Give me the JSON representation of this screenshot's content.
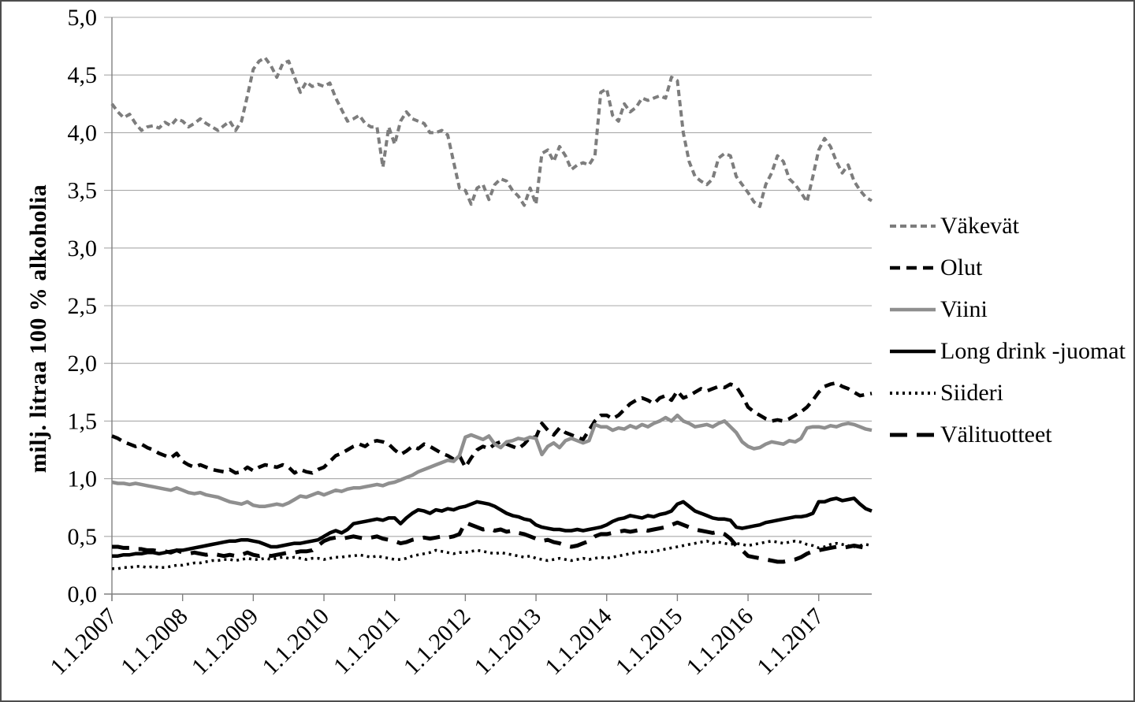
{
  "chart_data": {
    "type": "line",
    "title": "",
    "ylabel": "milj. litraa 100 % alkoholia",
    "x_unit": "month",
    "x_start_label": "1.1.2007",
    "months_per_tick": 12,
    "x_tick_labels": [
      "1.1.2007",
      "1.1.2008",
      "1.1.2009",
      "1.1.2010",
      "1.1.2011",
      "1.1.2012",
      "1.1.2013",
      "1.1.2014",
      "1.1.2015",
      "1.1.2016",
      "1.1.2017"
    ],
    "y_tick_labels": [
      "0,0",
      "0,5",
      "1,0",
      "1,5",
      "2,0",
      "2,5",
      "3,0",
      "3,5",
      "4,0",
      "4,5",
      "5,0"
    ],
    "y_tick_values": [
      0,
      0.5,
      1.0,
      1.5,
      2.0,
      2.5,
      3.0,
      3.5,
      4.0,
      4.5,
      5.0
    ],
    "ylim": [
      0,
      5
    ],
    "grid": "horizontal",
    "legend_position": "right",
    "axis_color": "#808080",
    "grid_color": "#a8a8a8",
    "series": [
      {
        "id": "vakevat",
        "name": "Väkevät",
        "color": "#7d7d7d",
        "line_style": "short-dash",
        "line_width": 4,
        "values": [
          4.25,
          4.18,
          4.13,
          4.16,
          4.08,
          4.02,
          4.05,
          4.06,
          4.04,
          4.09,
          4.06,
          4.12,
          4.1,
          4.05,
          4.08,
          4.12,
          4.08,
          4.05,
          4.02,
          4.06,
          4.1,
          4.02,
          4.1,
          4.32,
          4.55,
          4.62,
          4.65,
          4.58,
          4.48,
          4.6,
          4.62,
          4.48,
          4.35,
          4.44,
          4.4,
          4.42,
          4.4,
          4.43,
          4.3,
          4.2,
          4.1,
          4.12,
          4.15,
          4.08,
          4.05,
          4.05,
          3.7,
          4.05,
          3.9,
          4.1,
          4.18,
          4.12,
          4.1,
          4.08,
          4.0,
          4.0,
          4.02,
          3.98,
          3.75,
          3.52,
          3.5,
          3.38,
          3.52,
          3.55,
          3.42,
          3.55,
          3.6,
          3.58,
          3.5,
          3.45,
          3.37,
          3.52,
          3.38,
          3.82,
          3.85,
          3.75,
          3.88,
          3.8,
          3.68,
          3.72,
          3.74,
          3.72,
          3.8,
          4.35,
          4.38,
          4.15,
          4.1,
          4.25,
          4.18,
          4.22,
          4.3,
          4.28,
          4.3,
          4.32,
          4.3,
          4.48,
          4.45,
          4.0,
          3.75,
          3.62,
          3.58,
          3.55,
          3.6,
          3.78,
          3.82,
          3.8,
          3.62,
          3.55,
          3.48,
          3.4,
          3.36,
          3.55,
          3.65,
          3.8,
          3.75,
          3.6,
          3.55,
          3.48,
          3.4,
          3.62,
          3.85,
          3.95,
          3.88,
          3.75,
          3.65,
          3.72,
          3.58,
          3.5,
          3.44,
          3.41
        ]
      },
      {
        "id": "olut",
        "name": "Olut",
        "color": "#000000",
        "line_style": "dash",
        "line_width": 4.5,
        "values": [
          1.37,
          1.35,
          1.32,
          1.3,
          1.28,
          1.3,
          1.27,
          1.25,
          1.22,
          1.2,
          1.18,
          1.22,
          1.15,
          1.12,
          1.1,
          1.12,
          1.1,
          1.08,
          1.07,
          1.06,
          1.08,
          1.05,
          1.06,
          1.1,
          1.07,
          1.1,
          1.12,
          1.11,
          1.1,
          1.12,
          1.1,
          1.05,
          1.08,
          1.06,
          1.05,
          1.08,
          1.1,
          1.15,
          1.2,
          1.22,
          1.25,
          1.28,
          1.3,
          1.28,
          1.32,
          1.33,
          1.32,
          1.3,
          1.25,
          1.21,
          1.24,
          1.28,
          1.26,
          1.3,
          1.28,
          1.25,
          1.22,
          1.2,
          1.17,
          1.2,
          1.1,
          1.18,
          1.25,
          1.28,
          1.26,
          1.3,
          1.32,
          1.3,
          1.28,
          1.26,
          1.3,
          1.36,
          1.36,
          1.48,
          1.42,
          1.38,
          1.44,
          1.4,
          1.38,
          1.36,
          1.34,
          1.42,
          1.5,
          1.55,
          1.55,
          1.52,
          1.55,
          1.6,
          1.65,
          1.68,
          1.7,
          1.68,
          1.65,
          1.7,
          1.72,
          1.68,
          1.76,
          1.7,
          1.72,
          1.75,
          1.78,
          1.76,
          1.78,
          1.8,
          1.79,
          1.82,
          1.8,
          1.72,
          1.62,
          1.58,
          1.55,
          1.52,
          1.5,
          1.51,
          1.5,
          1.52,
          1.55,
          1.58,
          1.62,
          1.68,
          1.75,
          1.8,
          1.82,
          1.83,
          1.8,
          1.78,
          1.75,
          1.72,
          1.73,
          1.74
        ]
      },
      {
        "id": "viini",
        "name": "Viini",
        "color": "#8f8f8f",
        "line_style": "solid",
        "line_width": 4.5,
        "values": [
          0.97,
          0.96,
          0.96,
          0.95,
          0.96,
          0.95,
          0.94,
          0.93,
          0.92,
          0.91,
          0.9,
          0.92,
          0.9,
          0.88,
          0.87,
          0.88,
          0.86,
          0.85,
          0.84,
          0.82,
          0.8,
          0.79,
          0.78,
          0.8,
          0.77,
          0.76,
          0.76,
          0.77,
          0.78,
          0.77,
          0.79,
          0.82,
          0.85,
          0.84,
          0.86,
          0.88,
          0.86,
          0.88,
          0.9,
          0.89,
          0.91,
          0.92,
          0.92,
          0.93,
          0.94,
          0.95,
          0.94,
          0.96,
          0.97,
          0.99,
          1.01,
          1.03,
          1.06,
          1.08,
          1.1,
          1.12,
          1.14,
          1.16,
          1.15,
          1.2,
          1.36,
          1.38,
          1.36,
          1.34,
          1.37,
          1.3,
          1.27,
          1.32,
          1.33,
          1.35,
          1.34,
          1.36,
          1.35,
          1.21,
          1.28,
          1.31,
          1.27,
          1.33,
          1.35,
          1.33,
          1.31,
          1.33,
          1.47,
          1.45,
          1.45,
          1.42,
          1.44,
          1.43,
          1.46,
          1.44,
          1.47,
          1.45,
          1.48,
          1.5,
          1.53,
          1.5,
          1.55,
          1.5,
          1.48,
          1.45,
          1.46,
          1.47,
          1.45,
          1.48,
          1.5,
          1.45,
          1.4,
          1.32,
          1.28,
          1.26,
          1.27,
          1.3,
          1.32,
          1.31,
          1.3,
          1.33,
          1.32,
          1.35,
          1.44,
          1.45,
          1.45,
          1.44,
          1.46,
          1.45,
          1.47,
          1.48,
          1.47,
          1.45,
          1.43,
          1.42
        ]
      },
      {
        "id": "long-drink",
        "name": "Long drink -juomat",
        "color": "#000000",
        "line_style": "solid",
        "line_width": 4.5,
        "values": [
          0.33,
          0.33,
          0.34,
          0.34,
          0.35,
          0.35,
          0.36,
          0.36,
          0.35,
          0.36,
          0.37,
          0.38,
          0.38,
          0.39,
          0.4,
          0.41,
          0.42,
          0.43,
          0.44,
          0.45,
          0.46,
          0.46,
          0.47,
          0.47,
          0.46,
          0.45,
          0.43,
          0.41,
          0.41,
          0.42,
          0.43,
          0.44,
          0.44,
          0.45,
          0.46,
          0.47,
          0.5,
          0.53,
          0.55,
          0.53,
          0.56,
          0.61,
          0.62,
          0.63,
          0.64,
          0.65,
          0.64,
          0.66,
          0.66,
          0.61,
          0.66,
          0.7,
          0.73,
          0.72,
          0.7,
          0.73,
          0.72,
          0.74,
          0.73,
          0.75,
          0.76,
          0.78,
          0.8,
          0.79,
          0.78,
          0.76,
          0.73,
          0.7,
          0.68,
          0.67,
          0.65,
          0.64,
          0.6,
          0.58,
          0.57,
          0.56,
          0.56,
          0.55,
          0.55,
          0.56,
          0.55,
          0.56,
          0.57,
          0.58,
          0.6,
          0.63,
          0.65,
          0.66,
          0.68,
          0.67,
          0.66,
          0.68,
          0.67,
          0.69,
          0.7,
          0.72,
          0.78,
          0.8,
          0.76,
          0.72,
          0.7,
          0.68,
          0.66,
          0.65,
          0.65,
          0.64,
          0.58,
          0.57,
          0.58,
          0.59,
          0.6,
          0.62,
          0.63,
          0.64,
          0.65,
          0.66,
          0.67,
          0.67,
          0.68,
          0.7,
          0.8,
          0.8,
          0.82,
          0.83,
          0.81,
          0.82,
          0.83,
          0.78,
          0.74,
          0.72
        ]
      },
      {
        "id": "siideri",
        "name": "Siideri",
        "color": "#000000",
        "line_style": "dot",
        "line_width": 3.5,
        "values": [
          0.22,
          0.22,
          0.23,
          0.23,
          0.24,
          0.24,
          0.23,
          0.24,
          0.23,
          0.23,
          0.24,
          0.25,
          0.25,
          0.26,
          0.27,
          0.27,
          0.28,
          0.29,
          0.29,
          0.3,
          0.3,
          0.29,
          0.3,
          0.31,
          0.3,
          0.3,
          0.31,
          0.3,
          0.31,
          0.32,
          0.31,
          0.32,
          0.31,
          0.3,
          0.31,
          0.31,
          0.3,
          0.31,
          0.32,
          0.32,
          0.33,
          0.33,
          0.34,
          0.33,
          0.32,
          0.33,
          0.32,
          0.31,
          0.3,
          0.3,
          0.31,
          0.33,
          0.34,
          0.35,
          0.36,
          0.38,
          0.37,
          0.36,
          0.35,
          0.36,
          0.36,
          0.37,
          0.38,
          0.37,
          0.36,
          0.35,
          0.36,
          0.35,
          0.34,
          0.33,
          0.32,
          0.33,
          0.31,
          0.3,
          0.29,
          0.3,
          0.31,
          0.3,
          0.29,
          0.3,
          0.31,
          0.3,
          0.31,
          0.32,
          0.31,
          0.32,
          0.33,
          0.34,
          0.35,
          0.36,
          0.37,
          0.36,
          0.37,
          0.38,
          0.39,
          0.4,
          0.41,
          0.42,
          0.43,
          0.44,
          0.45,
          0.46,
          0.44,
          0.45,
          0.44,
          0.43,
          0.44,
          0.43,
          0.42,
          0.43,
          0.44,
          0.45,
          0.46,
          0.45,
          0.44,
          0.45,
          0.46,
          0.45,
          0.43,
          0.42,
          0.4,
          0.41,
          0.43,
          0.44,
          0.43,
          0.42,
          0.41,
          0.42,
          0.43,
          0.42
        ]
      },
      {
        "id": "valituotteet",
        "name": "Välituotteet",
        "color": "#000000",
        "line_style": "long-dash",
        "line_width": 5,
        "values": [
          0.41,
          0.41,
          0.4,
          0.4,
          0.39,
          0.39,
          0.38,
          0.38,
          0.37,
          0.37,
          0.36,
          0.38,
          0.36,
          0.35,
          0.36,
          0.35,
          0.34,
          0.35,
          0.34,
          0.33,
          0.34,
          0.33,
          0.34,
          0.36,
          0.34,
          0.33,
          0.34,
          0.33,
          0.34,
          0.35,
          0.36,
          0.36,
          0.37,
          0.37,
          0.38,
          0.42,
          0.46,
          0.48,
          0.49,
          0.48,
          0.49,
          0.5,
          0.49,
          0.48,
          0.49,
          0.5,
          0.48,
          0.47,
          0.46,
          0.44,
          0.45,
          0.47,
          0.48,
          0.49,
          0.48,
          0.49,
          0.5,
          0.49,
          0.5,
          0.52,
          0.62,
          0.6,
          0.58,
          0.56,
          0.57,
          0.55,
          0.56,
          0.54,
          0.55,
          0.53,
          0.52,
          0.5,
          0.48,
          0.46,
          0.47,
          0.45,
          0.44,
          0.42,
          0.41,
          0.42,
          0.44,
          0.46,
          0.5,
          0.52,
          0.52,
          0.53,
          0.54,
          0.55,
          0.54,
          0.55,
          0.56,
          0.55,
          0.56,
          0.57,
          0.58,
          0.6,
          0.62,
          0.6,
          0.58,
          0.56,
          0.55,
          0.54,
          0.53,
          0.54,
          0.52,
          0.48,
          0.42,
          0.38,
          0.33,
          0.32,
          0.31,
          0.3,
          0.29,
          0.28,
          0.28,
          0.29,
          0.3,
          0.32,
          0.35,
          0.37,
          0.38,
          0.39,
          0.4,
          0.41,
          0.4,
          0.41,
          0.42,
          0.41,
          0.4,
          0.41
        ]
      }
    ]
  }
}
